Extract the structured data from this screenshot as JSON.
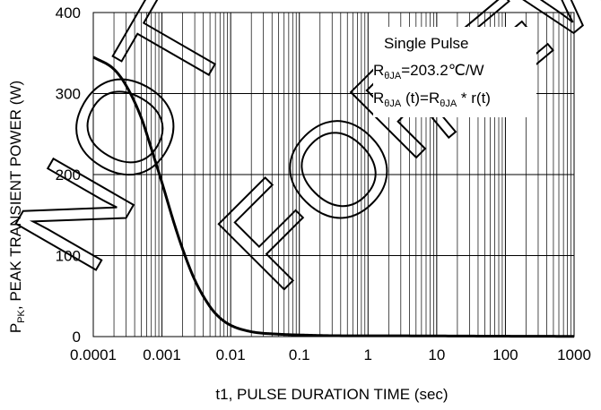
{
  "chart_data": {
    "type": "line",
    "x_scale": "log",
    "xlim": [
      0.0001,
      1000
    ],
    "ylim": [
      0,
      400
    ],
    "xlabel": "t1, PULSE DURATION TIME (sec)",
    "ylabel_parts": {
      "p": "P",
      "pk": "PK",
      "rest": ", PEAK TRANSIENT POWER (W)"
    },
    "x_ticks": [
      "0.0001",
      "0.001",
      "0.01",
      "0.1",
      "1",
      "10",
      "100",
      "1000"
    ],
    "y_ticks": [
      "0",
      "100",
      "200",
      "300",
      "400"
    ],
    "grid": true,
    "legend_position": "top-right",
    "series": [
      {
        "x": [
          0.0001,
          0.0002,
          0.0003,
          0.0005,
          0.0007,
          0.001,
          0.0015,
          0.002,
          0.003,
          0.005,
          0.007,
          0.01,
          0.02,
          0.05,
          0.1,
          0.5,
          1,
          10,
          100,
          1000
        ],
        "y": [
          345,
          330,
          310,
          270,
          232,
          190,
          140,
          108,
          70,
          37,
          23,
          14,
          6,
          3,
          2,
          1,
          1,
          0.8,
          0.5,
          0.3
        ]
      }
    ],
    "legend_lines": {
      "line1": "Single Pulse",
      "line2": {
        "r": "R",
        "sub": "θJA",
        "rest": "=203.2℃/W"
      },
      "line3": {
        "r1": "R",
        "sub1": "θJA",
        "mid": " (t)=R",
        "sub2": "θJA",
        "rest": " * r(t)"
      }
    },
    "watermark": [
      "NOT",
      "FOR",
      "NEW"
    ]
  }
}
